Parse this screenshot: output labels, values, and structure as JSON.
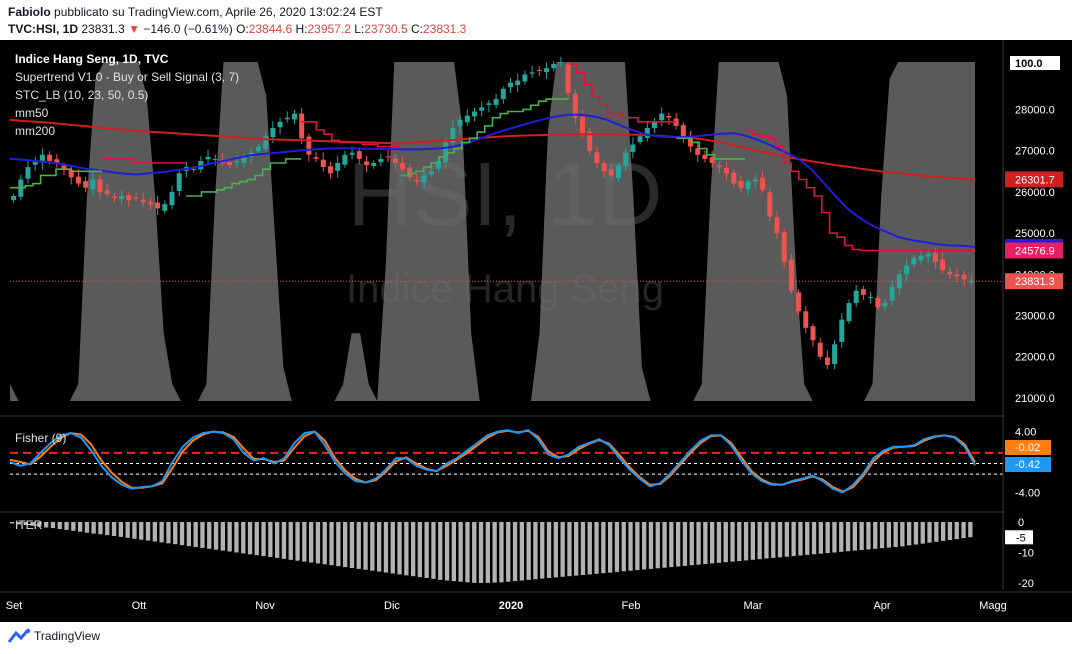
{
  "header": {
    "author": "Fabiolo",
    "published": "pubblicato su TradingView.com, Aprile 26, 2020 13:02:24 EST",
    "symbol": "TVC:HSI, 1D",
    "last": "23831.3",
    "arrow": "▼",
    "change": "−146.0 (−0.61%)",
    "o_label": "O:",
    "o_val": "23844.6",
    "h_label": "H:",
    "h_val": "23957.2",
    "l_label": "L:",
    "l_val": "23730.5",
    "c_label": "C:",
    "c_val": "23831.3"
  },
  "legend": {
    "title": "Indice Hang Seng, 1D, TVC",
    "supertrend": "Supertrend V1.0 - Buy or Sell Signal (3, 7)",
    "stc": "STC_LB (10, 23, 50, 0.5)",
    "mm50": "mm50",
    "mm200": "mm200"
  },
  "watermark": {
    "big": "HSI, 1D",
    "small": "Indice Hang Seng"
  },
  "colors": {
    "up": "#26a69a",
    "down": "#ef5350",
    "mm50": "#1f1fd6",
    "mm200": "#d01f1f",
    "supertrend_up": "#4caf50",
    "supertrend_down": "#dc143c",
    "stc": "#8a8a8a",
    "fisher": "#2196f3",
    "fisher_trigger": "#ff7f0e",
    "hist": "#b2b2b2"
  },
  "chart_data": [
    {
      "type": "candlestick",
      "title": "Indice Hang Seng, 1D, TVC",
      "y_ticks": [
        "21000.0",
        "22000.0",
        "23000.0",
        "24000.0",
        "25000.0",
        "26000.0",
        "27000.0",
        "28000.0"
      ],
      "ylim": [
        20900,
        29200
      ],
      "stc_top_label": "100.0",
      "price_labels": {
        "mm200": "26301.7",
        "mm50": "24663.6",
        "supertrend": "24576.9",
        "last": "23831.3"
      },
      "x_ticks": [
        "Set",
        "Ott",
        "Nov",
        "Dic",
        "2020",
        "Feb",
        "Mar",
        "Apr",
        "Magg"
      ],
      "closes": [
        25900,
        26300,
        26600,
        26750,
        26900,
        26750,
        26700,
        26550,
        26350,
        26200,
        26100,
        26300,
        26000,
        25950,
        25850,
        25900,
        25800,
        25850,
        25750,
        25700,
        25600,
        25700,
        26000,
        26450,
        26600,
        26550,
        26750,
        26850,
        26800,
        26700,
        26650,
        26750,
        26850,
        26950,
        27100,
        27350,
        27550,
        27700,
        27800,
        27900,
        27300,
        26900,
        26800,
        26600,
        26450,
        26700,
        26900,
        26950,
        26800,
        26650,
        26700,
        26800,
        26850,
        26700,
        26550,
        26350,
        26250,
        26400,
        26500,
        26750,
        27200,
        27550,
        27750,
        27850,
        27950,
        28050,
        28150,
        28250,
        28500,
        28650,
        28700,
        28850,
        28900,
        28950,
        29000,
        29100,
        29150,
        28400,
        27800,
        27400,
        27000,
        26700,
        26500,
        26400,
        26650,
        26950,
        27150,
        27350,
        27550,
        27700,
        27900,
        27800,
        27600,
        27300,
        27100,
        26900,
        26800,
        26700,
        26600,
        26450,
        26200,
        26100,
        26250,
        26300,
        26050,
        25400,
        25000,
        24300,
        23600,
        23100,
        22700,
        22400,
        22000,
        21800,
        22300,
        22900,
        23300,
        23600,
        23500,
        23450,
        23200,
        23300,
        23700,
        24000,
        24200,
        24400,
        24450,
        24500,
        24300,
        24100,
        24000,
        23950,
        23880,
        23831.3
      ],
      "mm50": [
        26800,
        26780,
        26750,
        26720,
        26680,
        26620,
        26560,
        26520,
        26480,
        26440,
        26420,
        26450,
        26480,
        26520,
        26560,
        26620,
        26700,
        26760,
        26830,
        26890,
        26920,
        26950,
        26980,
        27010,
        27030,
        27050,
        27060,
        27060,
        27050,
        27040,
        27040,
        27030,
        27030,
        27040,
        27060,
        27100,
        27180,
        27290,
        27400,
        27500,
        27590,
        27680,
        27760,
        27830,
        27870,
        27870,
        27830,
        27750,
        27620,
        27500,
        27400,
        27350,
        27330,
        27330,
        27350,
        27380,
        27410,
        27420,
        27360,
        27250,
        27120,
        26970,
        26820,
        26580,
        26250,
        25900,
        25580,
        25350,
        25170,
        25030,
        24900,
        24830,
        24780,
        24730,
        24700,
        24690,
        24663.6
      ],
      "mm200": [
        27750,
        27720,
        27700,
        27680,
        27650,
        27620,
        27590,
        27560,
        27530,
        27510,
        27480,
        27460,
        27440,
        27420,
        27400,
        27380,
        27360,
        27340,
        27320,
        27300,
        27280,
        27270,
        27260,
        27250,
        27240,
        27230,
        27220,
        27210,
        27200,
        27190,
        27180,
        27180,
        27200,
        27220,
        27240,
        27260,
        27290,
        27310,
        27330,
        27350,
        27360,
        27370,
        27380,
        27390,
        27400,
        27400,
        27400,
        27400,
        27400,
        27390,
        27380,
        27360,
        27340,
        27320,
        27300,
        27250,
        27200,
        27130,
        27060,
        26990,
        26920,
        26860,
        26800,
        26750,
        26700,
        26650,
        26610,
        26560,
        26520,
        26480,
        26450,
        26420,
        26390,
        26360,
        26340,
        26320,
        26301.7
      ],
      "supertrend": [
        {
          "dir": "up",
          "values": [
            26100,
            26100,
            26150,
            26200,
            26400,
            26400,
            26550,
            26550,
            26500,
            26500,
            26500,
            26500
          ]
        },
        {
          "dir": "down",
          "values": [
            26800,
            26800,
            26800,
            26800,
            26700,
            26700,
            26700,
            26700,
            26700,
            26700,
            26700
          ]
        },
        {
          "dir": "up",
          "values": [
            25900,
            25900,
            26000,
            26000,
            26050,
            26100,
            26200,
            26250,
            26300,
            26400,
            26550,
            26700,
            26700,
            26800,
            26800
          ]
        },
        {
          "dir": "down",
          "values": [
            27700,
            27700,
            27500,
            27400,
            27250,
            27200,
            27200,
            27200,
            27150,
            27150,
            27100,
            27100,
            27100
          ]
        },
        {
          "dir": "up",
          "values": [
            26400,
            26450,
            26500,
            26600,
            26700,
            26850,
            26950,
            27050,
            27200,
            27300,
            27450,
            27600,
            27800,
            27900,
            27950,
            27950,
            28000,
            28100,
            28200,
            28250,
            28250,
            28250
          ]
        },
        {
          "dir": "down",
          "values": [
            29100,
            28900,
            28600,
            28300,
            28100,
            27900,
            27900,
            27800,
            27800,
            27700,
            27700,
            27700,
            27700,
            27700
          ]
        },
        {
          "dir": "up",
          "values": [
            27300,
            27300,
            27200,
            27050,
            26900,
            26800,
            26800,
            26800,
            26800
          ]
        },
        {
          "dir": "down",
          "values": [
            27500,
            27400,
            27350,
            27300,
            27100,
            26700,
            26500,
            26300,
            26100,
            25900,
            25500,
            25000,
            24900,
            24700,
            24600,
            24576.9,
            24576.9,
            24576.9,
            24576.9,
            24576.9,
            24576.9,
            24576.9,
            24576.9,
            24576.9,
            24576.9,
            24576.9,
            24576.9,
            24576.9,
            24576.9,
            24576.9
          ]
        }
      ],
      "stc": [
        5,
        0,
        0,
        0,
        0,
        0,
        0,
        0,
        5,
        60,
        95,
        100,
        100,
        100,
        100,
        100,
        90,
        60,
        20,
        5,
        0,
        0,
        0,
        5,
        60,
        100,
        100,
        100,
        100,
        100,
        90,
        50,
        10,
        0,
        0,
        0,
        0,
        0,
        0,
        5,
        20,
        20,
        5,
        0,
        40,
        100,
        100,
        100,
        100,
        100,
        100,
        100,
        100,
        80,
        20,
        0,
        0,
        0,
        0,
        0,
        0,
        0,
        20,
        80,
        100,
        100,
        100,
        100,
        100,
        100,
        100,
        100,
        100,
        60,
        10,
        0,
        0,
        0,
        0,
        0,
        0,
        5,
        60,
        100,
        100,
        100,
        100,
        100,
        100,
        100,
        100,
        90,
        40,
        5,
        0,
        0,
        0,
        0,
        0,
        0,
        0,
        5,
        60,
        95,
        100,
        100,
        100,
        100,
        100,
        100,
        100,
        100,
        100,
        100
      ]
    },
    {
      "type": "line",
      "title": "Fisher (9)",
      "series_labels": [
        "-0.02",
        "-0.42"
      ],
      "y_ticks": [
        "4.00",
        "-4.00"
      ],
      "ylim": [
        -5,
        5
      ],
      "fisher": [
        0,
        -0.5,
        -0.2,
        1.2,
        2.5,
        3.5,
        3.8,
        3.2,
        1.5,
        -0.5,
        -2,
        -3,
        -3.5,
        -3.3,
        -3.2,
        -2.5,
        0,
        2,
        3.2,
        3.8,
        4,
        3.8,
        3,
        1.2,
        0.2,
        0.5,
        -0.2,
        0.5,
        2.5,
        3.8,
        4,
        2.2,
        0,
        -1.5,
        -2.5,
        -2.7,
        -2.2,
        -1,
        0.5,
        0.5,
        -0.5,
        -1,
        -1.2,
        -0.2,
        0.5,
        1.5,
        2.5,
        3.5,
        4,
        4.2,
        3.8,
        4.2,
        3,
        1,
        0.5,
        1,
        2,
        2.5,
        3,
        2.2,
        0.5,
        -1,
        -2.2,
        -3.2,
        -2.8,
        -1.5,
        0,
        1.5,
        2.8,
        3.5,
        3.5,
        2.2,
        0.2,
        -1.5,
        -2.5,
        -3,
        -3,
        -2.5,
        -2.2,
        -1.8,
        -2.5,
        -3.5,
        -4,
        -3,
        -1.5,
        0.5,
        1.5,
        2,
        2,
        2.2,
        3,
        3.4,
        3.5,
        3.2,
        2,
        -0.42
      ],
      "trigger": [
        0.3,
        0,
        -0.3,
        0.7,
        2,
        3.2,
        3.8,
        3.6,
        2.3,
        0.2,
        -1.4,
        -2.6,
        -3.4,
        -3.4,
        -3.2,
        -2.8,
        -0.8,
        1.4,
        2.8,
        3.6,
        4,
        3.9,
        3.3,
        1.8,
        0.4,
        0.4,
        0,
        0.2,
        1.9,
        3.4,
        4,
        2.8,
        0.5,
        -1.1,
        -2.2,
        -2.7,
        -2.4,
        -1.3,
        0.1,
        0.6,
        -0.2,
        -0.9,
        -1.2,
        -0.5,
        0.3,
        1.2,
        2.2,
        3.2,
        3.9,
        4.1,
        3.9,
        4.1,
        3.3,
        1.4,
        0.6,
        0.8,
        1.7,
        2.4,
        2.9,
        2.4,
        0.9,
        -0.7,
        -2,
        -3,
        -2.9,
        -1.8,
        -0.3,
        1.2,
        2.5,
        3.4,
        3.5,
        2.5,
        0.6,
        -1.2,
        -2.3,
        -2.9,
        -3,
        -2.6,
        -2.3,
        -1.9,
        -2.3,
        -3.3,
        -3.9,
        -3.3,
        -1.8,
        0.1,
        1.3,
        1.9,
        2,
        2.1,
        2.8,
        3.3,
        3.5,
        3.3,
        2.3,
        -0.02
      ],
      "levels": {
        "upper": 1.2,
        "mid": -0.2,
        "lower": -1.6
      }
    },
    {
      "type": "bar",
      "title": "ITER",
      "series_labels": [
        "-5"
      ],
      "y_ticks": [
        "0",
        "-10",
        "-20"
      ],
      "ylim": [
        -21,
        1
      ],
      "values": [
        -0.5,
        -0.8,
        -1.0,
        -1.2,
        -1.5,
        -1.8,
        -2.0,
        -2.3,
        -2.6,
        -2.9,
        -3.2,
        -3.5,
        -3.8,
        -4.0,
        -4.3,
        -4.6,
        -4.9,
        -5.2,
        -5.5,
        -5.8,
        -6.1,
        -6.4,
        -6.7,
        -7.0,
        -7.3,
        -7.6,
        -7.9,
        -8.2,
        -8.5,
        -8.8,
        -9.1,
        -9.4,
        -9.7,
        -10.0,
        -10.3,
        -10.6,
        -10.9,
        -11.2,
        -11.5,
        -11.8,
        -12.1,
        -12.4,
        -12.7,
        -13.0,
        -13.3,
        -13.6,
        -13.9,
        -14.2,
        -14.5,
        -14.8,
        -15.1,
        -15.4,
        -15.7,
        -16.0,
        -16.3,
        -16.6,
        -16.9,
        -17.2,
        -17.5,
        -17.8,
        -18.1,
        -18.4,
        -18.7,
        -19.0,
        -19.2,
        -19.4,
        -19.6,
        -19.8,
        -20.0,
        -20.0,
        -20.0,
        -19.9,
        -19.8,
        -19.6,
        -19.4,
        -19.2,
        -19.0,
        -18.8,
        -18.6,
        -18.4,
        -18.2,
        -18.0,
        -17.8,
        -17.6,
        -17.4,
        -17.2,
        -17.0,
        -16.8,
        -16.6,
        -16.4,
        -16.2,
        -16.0,
        -15.8,
        -15.6,
        -15.4,
        -15.2,
        -15.0,
        -14.8,
        -14.6,
        -14.4,
        -14.2,
        -14.0,
        -13.8,
        -13.6,
        -13.4,
        -13.2,
        -13.0,
        -12.8,
        -12.6,
        -12.4,
        -12.2,
        -12.0,
        -11.8,
        -11.6,
        -11.4,
        -11.2,
        -11.0,
        -10.8,
        -10.6,
        -10.4,
        -10.2,
        -10.0,
        -9.8,
        -9.6,
        -9.4,
        -9.2,
        -9.0,
        -8.8,
        -8.6,
        -8.4,
        -8.2,
        -8.0,
        -7.7,
        -7.4,
        -7.1,
        -6.8,
        -6.5,
        -6.2,
        -5.9,
        -5.6,
        -5.3,
        -5.0
      ]
    }
  ],
  "footer": {
    "brand": "TradingView"
  }
}
